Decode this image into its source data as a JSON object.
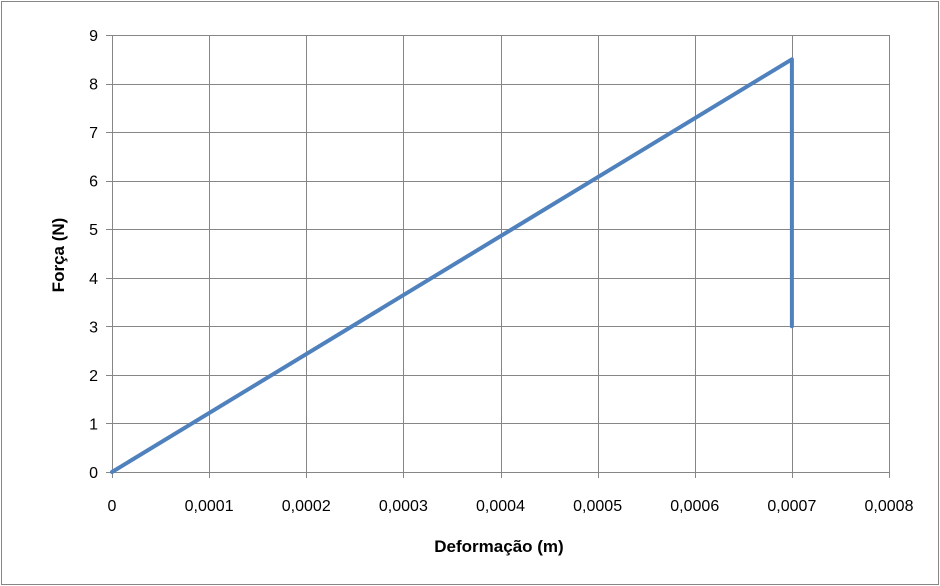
{
  "chart_data": {
    "type": "line",
    "xlabel": "Deformação (m)",
    "ylabel": "Força (N)",
    "xlim": [
      0,
      0.0008
    ],
    "ylim": [
      0,
      9
    ],
    "x_ticks": [
      0,
      0.0001,
      0.0002,
      0.0003,
      0.0004,
      0.0005,
      0.0006,
      0.0007,
      0.0008
    ],
    "x_tick_labels": [
      "0",
      "0,0001",
      "0,0002",
      "0,0003",
      "0,0004",
      "0,0005",
      "0,0006",
      "0,0007",
      "0,0008"
    ],
    "y_ticks": [
      0,
      1,
      2,
      3,
      4,
      5,
      6,
      7,
      8,
      9
    ],
    "y_tick_labels": [
      "0",
      "1",
      "2",
      "3",
      "4",
      "5",
      "6",
      "7",
      "8",
      "9"
    ],
    "grid": true,
    "legend": "none",
    "series": [
      {
        "color": "#4f81bd",
        "x": [
          0,
          0.0007,
          0.0007
        ],
        "y": [
          0,
          8.5,
          3.0
        ]
      }
    ]
  }
}
